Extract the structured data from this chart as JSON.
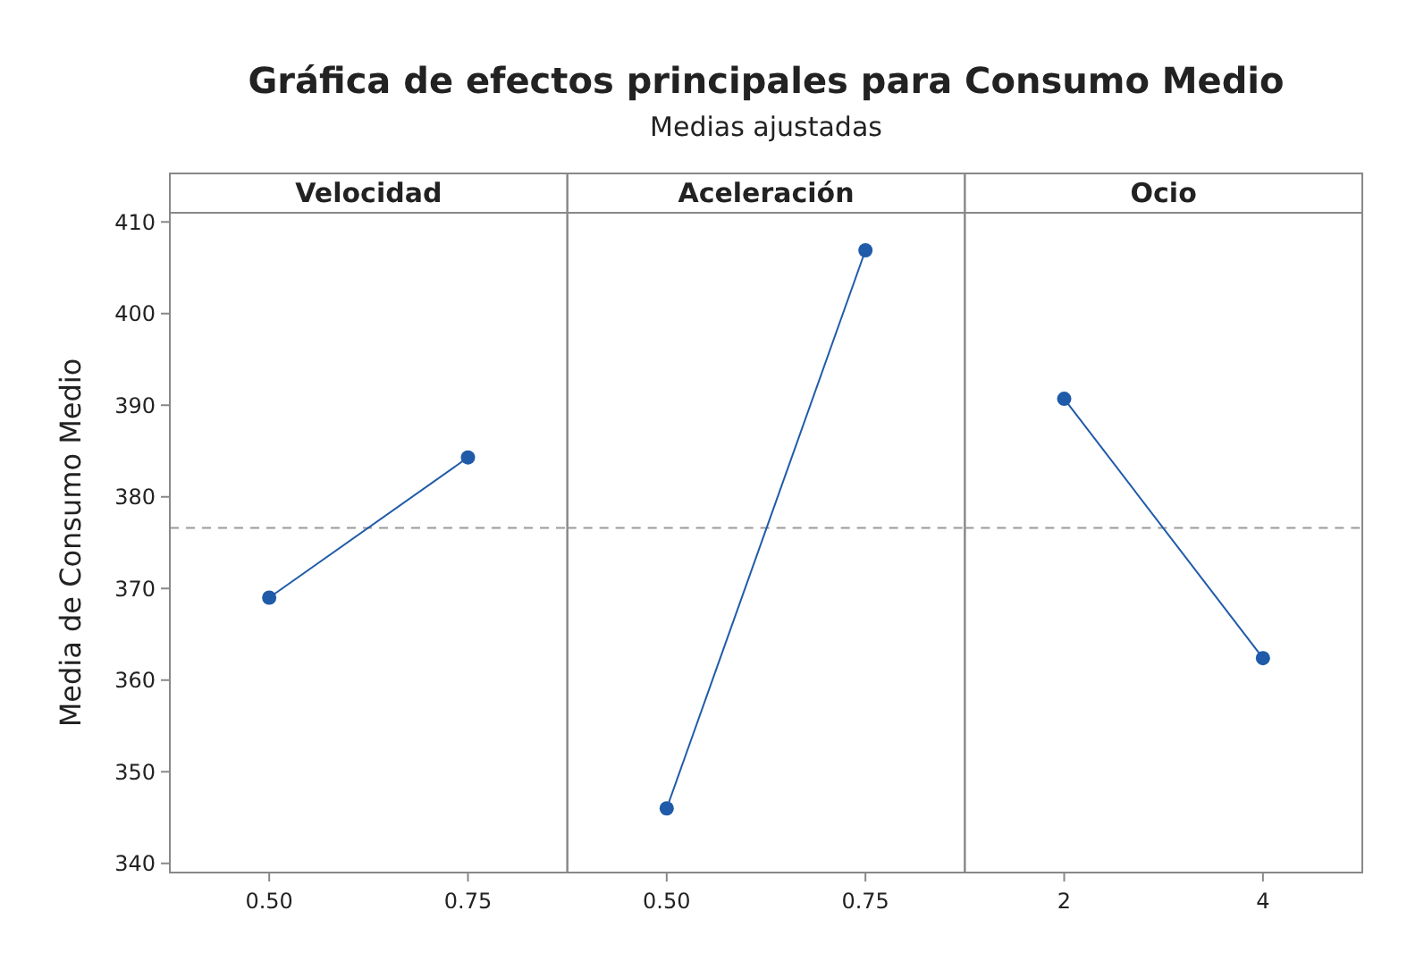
{
  "chart_data": [
    {
      "type": "line",
      "title": "Velocidad",
      "ylabel": "Media de Consumo Medio",
      "annotations": [
        "Gráfica de efectos principales para Consumo Medio",
        "Medias ajustadas"
      ],
      "categories": [
        "0.50",
        "0.75"
      ],
      "series": [
        {
          "color": "#1f5ba8",
          "values": [
            369.0,
            384.3
          ]
        }
      ],
      "ylim": [
        339,
        411
      ],
      "yticks": [
        340,
        350,
        360,
        370,
        380,
        390,
        400,
        410
      ],
      "ref_lines": [
        {
          "axis": "y",
          "value": 376.6,
          "color": "#999999",
          "line_style": "dashed"
        }
      ],
      "marker": "circle",
      "grid": false
    },
    {
      "type": "line",
      "title": "Aceleración",
      "categories": [
        "0.50",
        "0.75"
      ],
      "series": [
        {
          "color": "#1f5ba8",
          "values": [
            346.0,
            406.9
          ]
        }
      ],
      "ylim": [
        339,
        411
      ],
      "yticks": [
        340,
        350,
        360,
        370,
        380,
        390,
        400,
        410
      ],
      "tick_labels": "x",
      "ref_lines": [
        {
          "axis": "y",
          "value": 376.6,
          "color": "#999999",
          "line_style": "dashed"
        }
      ],
      "marker": "circle",
      "grid": false
    },
    {
      "type": "line",
      "title": "Ocio",
      "categories": [
        "2",
        "4"
      ],
      "series": [
        {
          "color": "#1f5ba8",
          "values": [
            390.7,
            362.4
          ]
        }
      ],
      "ylim": [
        339,
        411
      ],
      "yticks": [
        340,
        350,
        360,
        370,
        380,
        390,
        400,
        410
      ],
      "tick_labels": "x",
      "ref_lines": [
        {
          "axis": "y",
          "value": 376.6,
          "color": "#999999",
          "line_style": "dashed"
        }
      ],
      "marker": "circle",
      "grid": false
    }
  ]
}
